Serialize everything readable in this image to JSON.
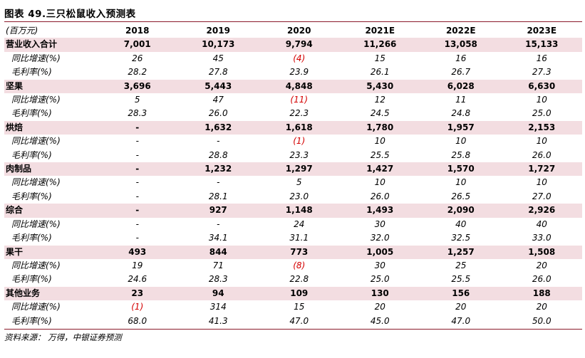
{
  "title": "图表 49.三只松鼠收入预测表",
  "source": "资料来源： 万得，中银证券预测",
  "colors": {
    "accent": "#8b1a2a",
    "highlight": "#f3dde1",
    "negative": "#d40000"
  },
  "table": {
    "unit_label": "(百万元)",
    "years": [
      "2018",
      "2019",
      "2020",
      "2021E",
      "2022E",
      "2023E"
    ],
    "rows": [
      {
        "type": "group",
        "label": "营业收入合计",
        "values": [
          "7,001",
          "10,173",
          "9,794",
          "11,266",
          "13,058",
          "15,133"
        ]
      },
      {
        "type": "sub",
        "label": "同比增速(%)",
        "values": [
          "26",
          "45",
          "(4)",
          "15",
          "16",
          "16"
        ]
      },
      {
        "type": "sub",
        "label": "毛利率(%)",
        "values": [
          "28.2",
          "27.8",
          "23.9",
          "26.1",
          "26.7",
          "27.3"
        ]
      },
      {
        "type": "group",
        "label": "坚果",
        "values": [
          "3,696",
          "5,443",
          "4,848",
          "5,430",
          "6,028",
          "6,630"
        ]
      },
      {
        "type": "sub",
        "label": "同比增速(%)",
        "values": [
          "5",
          "47",
          "(11)",
          "12",
          "11",
          "10"
        ]
      },
      {
        "type": "sub",
        "label": "毛利率(%)",
        "values": [
          "28.3",
          "26.0",
          "22.3",
          "24.5",
          "24.8",
          "25.0"
        ]
      },
      {
        "type": "group",
        "label": "烘焙",
        "values": [
          "-",
          "1,632",
          "1,618",
          "1,780",
          "1,957",
          "2,153"
        ]
      },
      {
        "type": "sub",
        "label": "同比增速(%)",
        "values": [
          "-",
          "-",
          "(1)",
          "10",
          "10",
          "10"
        ]
      },
      {
        "type": "sub",
        "label": "毛利率(%)",
        "values": [
          "-",
          "28.8",
          "23.3",
          "25.5",
          "25.8",
          "26.0"
        ]
      },
      {
        "type": "group",
        "label": "肉制品",
        "values": [
          "-",
          "1,232",
          "1,297",
          "1,427",
          "1,570",
          "1,727"
        ]
      },
      {
        "type": "sub",
        "label": "同比增速(%)",
        "values": [
          "-",
          "-",
          "5",
          "10",
          "10",
          "10"
        ]
      },
      {
        "type": "sub",
        "label": "毛利率(%)",
        "values": [
          "-",
          "28.1",
          "23.0",
          "26.0",
          "26.5",
          "27.0"
        ]
      },
      {
        "type": "group",
        "label": "综合",
        "values": [
          "-",
          "927",
          "1,148",
          "1,493",
          "2,090",
          "2,926"
        ]
      },
      {
        "type": "sub",
        "label": "同比增速(%)",
        "values": [
          "-",
          "-",
          "24",
          "30",
          "40",
          "40"
        ]
      },
      {
        "type": "sub",
        "label": "毛利率(%)",
        "values": [
          "-",
          "34.1",
          "31.1",
          "32.0",
          "32.5",
          "33.0"
        ]
      },
      {
        "type": "group",
        "label": "果干",
        "values": [
          "493",
          "844",
          "773",
          "1,005",
          "1,257",
          "1,508"
        ]
      },
      {
        "type": "sub",
        "label": "同比增速(%)",
        "values": [
          "19",
          "71",
          "(8)",
          "30",
          "25",
          "20"
        ]
      },
      {
        "type": "sub",
        "label": "毛利率(%)",
        "values": [
          "24.6",
          "28.3",
          "22.8",
          "25.0",
          "25.5",
          "26.0"
        ]
      },
      {
        "type": "group",
        "label": "其他业务",
        "values": [
          "23",
          "94",
          "109",
          "130",
          "156",
          "188"
        ]
      },
      {
        "type": "sub",
        "label": "同比增速(%)",
        "values": [
          "(1)",
          "314",
          "15",
          "20",
          "20",
          "20"
        ]
      },
      {
        "type": "sub",
        "label": "毛利率(%)",
        "values": [
          "68.0",
          "41.3",
          "47.0",
          "45.0",
          "47.0",
          "50.0"
        ]
      }
    ]
  }
}
